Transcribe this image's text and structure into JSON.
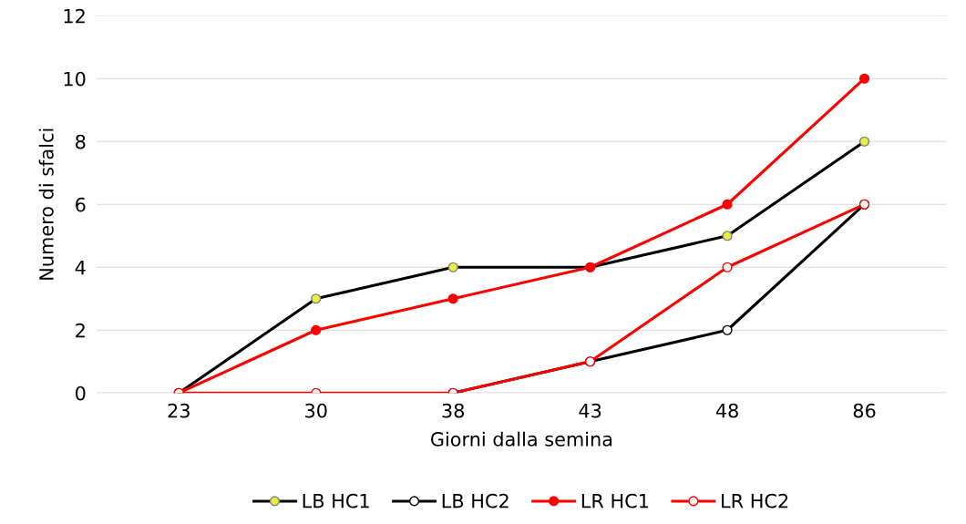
{
  "chart_data": {
    "type": "line",
    "xlabel": "Giorni dalla semina",
    "ylabel": "Numero di sfalci",
    "categories": [
      "23",
      "30",
      "38",
      "43",
      "48",
      "86"
    ],
    "ylim": [
      0,
      12
    ],
    "yticks": [
      0,
      2,
      4,
      6,
      8,
      10,
      12
    ],
    "grid": "y",
    "legend": "bottom",
    "marker": "circle",
    "line_style": "solid",
    "series": [
      {
        "name": "LB HC1",
        "color": "#000000",
        "colors": [
          "#e8f03c",
          "#e8f03c",
          "#e8f03c",
          "#e8f03c",
          "#e8f03c",
          "#e8f03c"
        ],
        "values": [
          0,
          3,
          4,
          4,
          5,
          8
        ]
      },
      {
        "name": "LB HC2",
        "color": "#000000",
        "colors": [
          "#ffffff",
          "#ffffff",
          "#ffffff",
          "#ffffff",
          "#ffffff",
          "#ffffff"
        ],
        "values": [
          null,
          null,
          0,
          1,
          2,
          6
        ]
      },
      {
        "name": "LR HC1",
        "color": "#ff0000",
        "colors": [
          "#ff0000",
          "#ff0000",
          "#ff0000",
          "#ff0000",
          "#ff0000",
          "#ff0000"
        ],
        "values": [
          0,
          2,
          3,
          4,
          6,
          10
        ]
      },
      {
        "name": "LR HC2",
        "color": "#ff0000",
        "colors": [
          "#ffffff",
          "#ffffff",
          "#ffffff",
          "#ffffff",
          "#ffffff",
          "#ffffff"
        ],
        "values": [
          0,
          0,
          0,
          1,
          4,
          6
        ]
      }
    ]
  }
}
